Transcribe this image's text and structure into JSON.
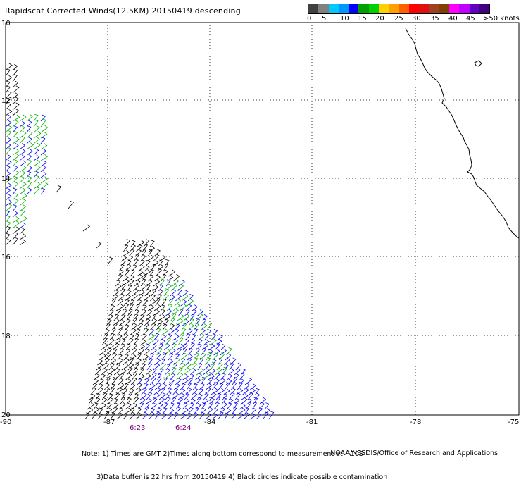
{
  "title": "Rapidscat Corrected Winds(12.5KM) 20150419 descending",
  "scale": {
    "colors": [
      "#404040",
      "#808080",
      "#00c8ff",
      "#0096ff",
      "#0000ff",
      "#00a000",
      "#00d000",
      "#ffd000",
      "#ffa000",
      "#ff6000",
      "#ff0000",
      "#e01010",
      "#a04020",
      "#804000",
      "#ff00ff",
      "#c000ff",
      "#6000c0",
      "#400080"
    ],
    "labels": [
      "0",
      "5",
      "10",
      "15",
      "20",
      "25",
      "30",
      "35",
      "40",
      "45",
      ">50 knots"
    ]
  },
  "axes": {
    "lat_labels": [
      "10",
      "12",
      "14",
      "16",
      "18",
      "20"
    ],
    "lon_labels": [
      "-90",
      "-87",
      "-84",
      "-81",
      "-78",
      "-75"
    ]
  },
  "times": [
    "6:23",
    "6:24"
  ],
  "barb_colors": {
    "low": "#000000",
    "mid": "#0000ff",
    "high": "#00b000"
  },
  "notes": [
    "Note: 1) Times are GMT 2)Times along bottom correspond to measurement at ~10S",
    "       3)Data buffer is 22 hrs from 20150419 4) Black circles indicate possible contamination"
  ],
  "credit": "NOAA/NESDIS/Office of Research and Applications"
}
